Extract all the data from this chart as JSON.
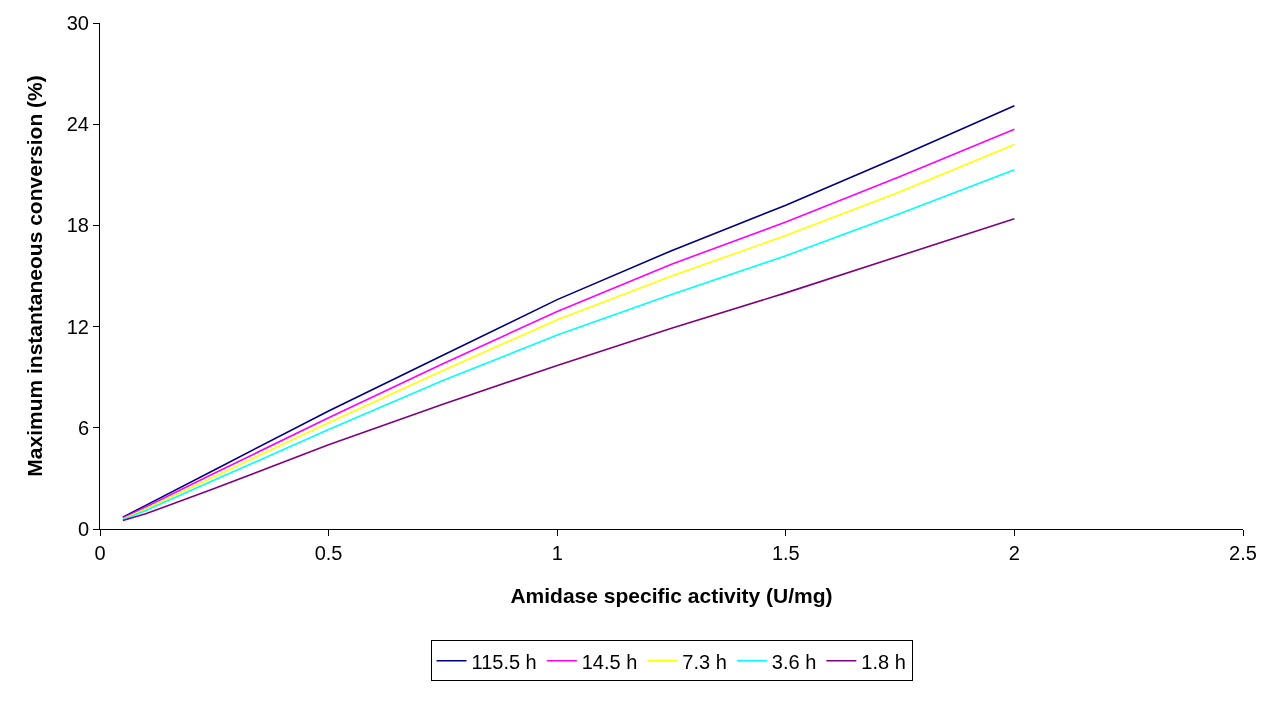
{
  "chart_data": {
    "type": "line",
    "xlabel": "Amidase specific activity (U/mg)",
    "ylabel": "Maximum instantaneous conversion (%)",
    "x": [
      0.05,
      0.1,
      0.25,
      0.5,
      0.75,
      1,
      1.25,
      1.5,
      1.75,
      2
    ],
    "series": [
      {
        "name": "115.5 h",
        "color": "#000080",
        "values": [
          0.7,
          1.4,
          3.5,
          7.0,
          10.3,
          13.6,
          16.5,
          19.2,
          22.1,
          25.1
        ]
      },
      {
        "name": "14.5 h",
        "color": "#ff00ff",
        "values": [
          0.65,
          1.3,
          3.3,
          6.6,
          9.8,
          12.9,
          15.7,
          18.2,
          20.9,
          23.7
        ]
      },
      {
        "name": "7.3 h",
        "color": "#ffff00",
        "values": [
          0.6,
          1.2,
          3.1,
          6.3,
          9.4,
          12.4,
          15.0,
          17.4,
          20.0,
          22.8
        ]
      },
      {
        "name": "3.6 h",
        "color": "#00ffff",
        "values": [
          0.55,
          1.1,
          2.9,
          5.9,
          8.8,
          11.5,
          13.9,
          16.2,
          18.7,
          21.3
        ]
      },
      {
        "name": "1.8 h",
        "color": "#800080",
        "values": [
          0.5,
          0.9,
          2.4,
          5.0,
          7.4,
          9.7,
          11.9,
          14.0,
          16.2,
          18.4
        ]
      }
    ],
    "xlim": [
      0,
      2.5
    ],
    "xticks": [
      0,
      0.5,
      1,
      1.5,
      2,
      2.5
    ],
    "ylim": [
      0,
      30
    ],
    "yticks": [
      0,
      6,
      12,
      18,
      24,
      30
    ],
    "legend": "bottom",
    "marker": "none",
    "line_style": "solid"
  }
}
